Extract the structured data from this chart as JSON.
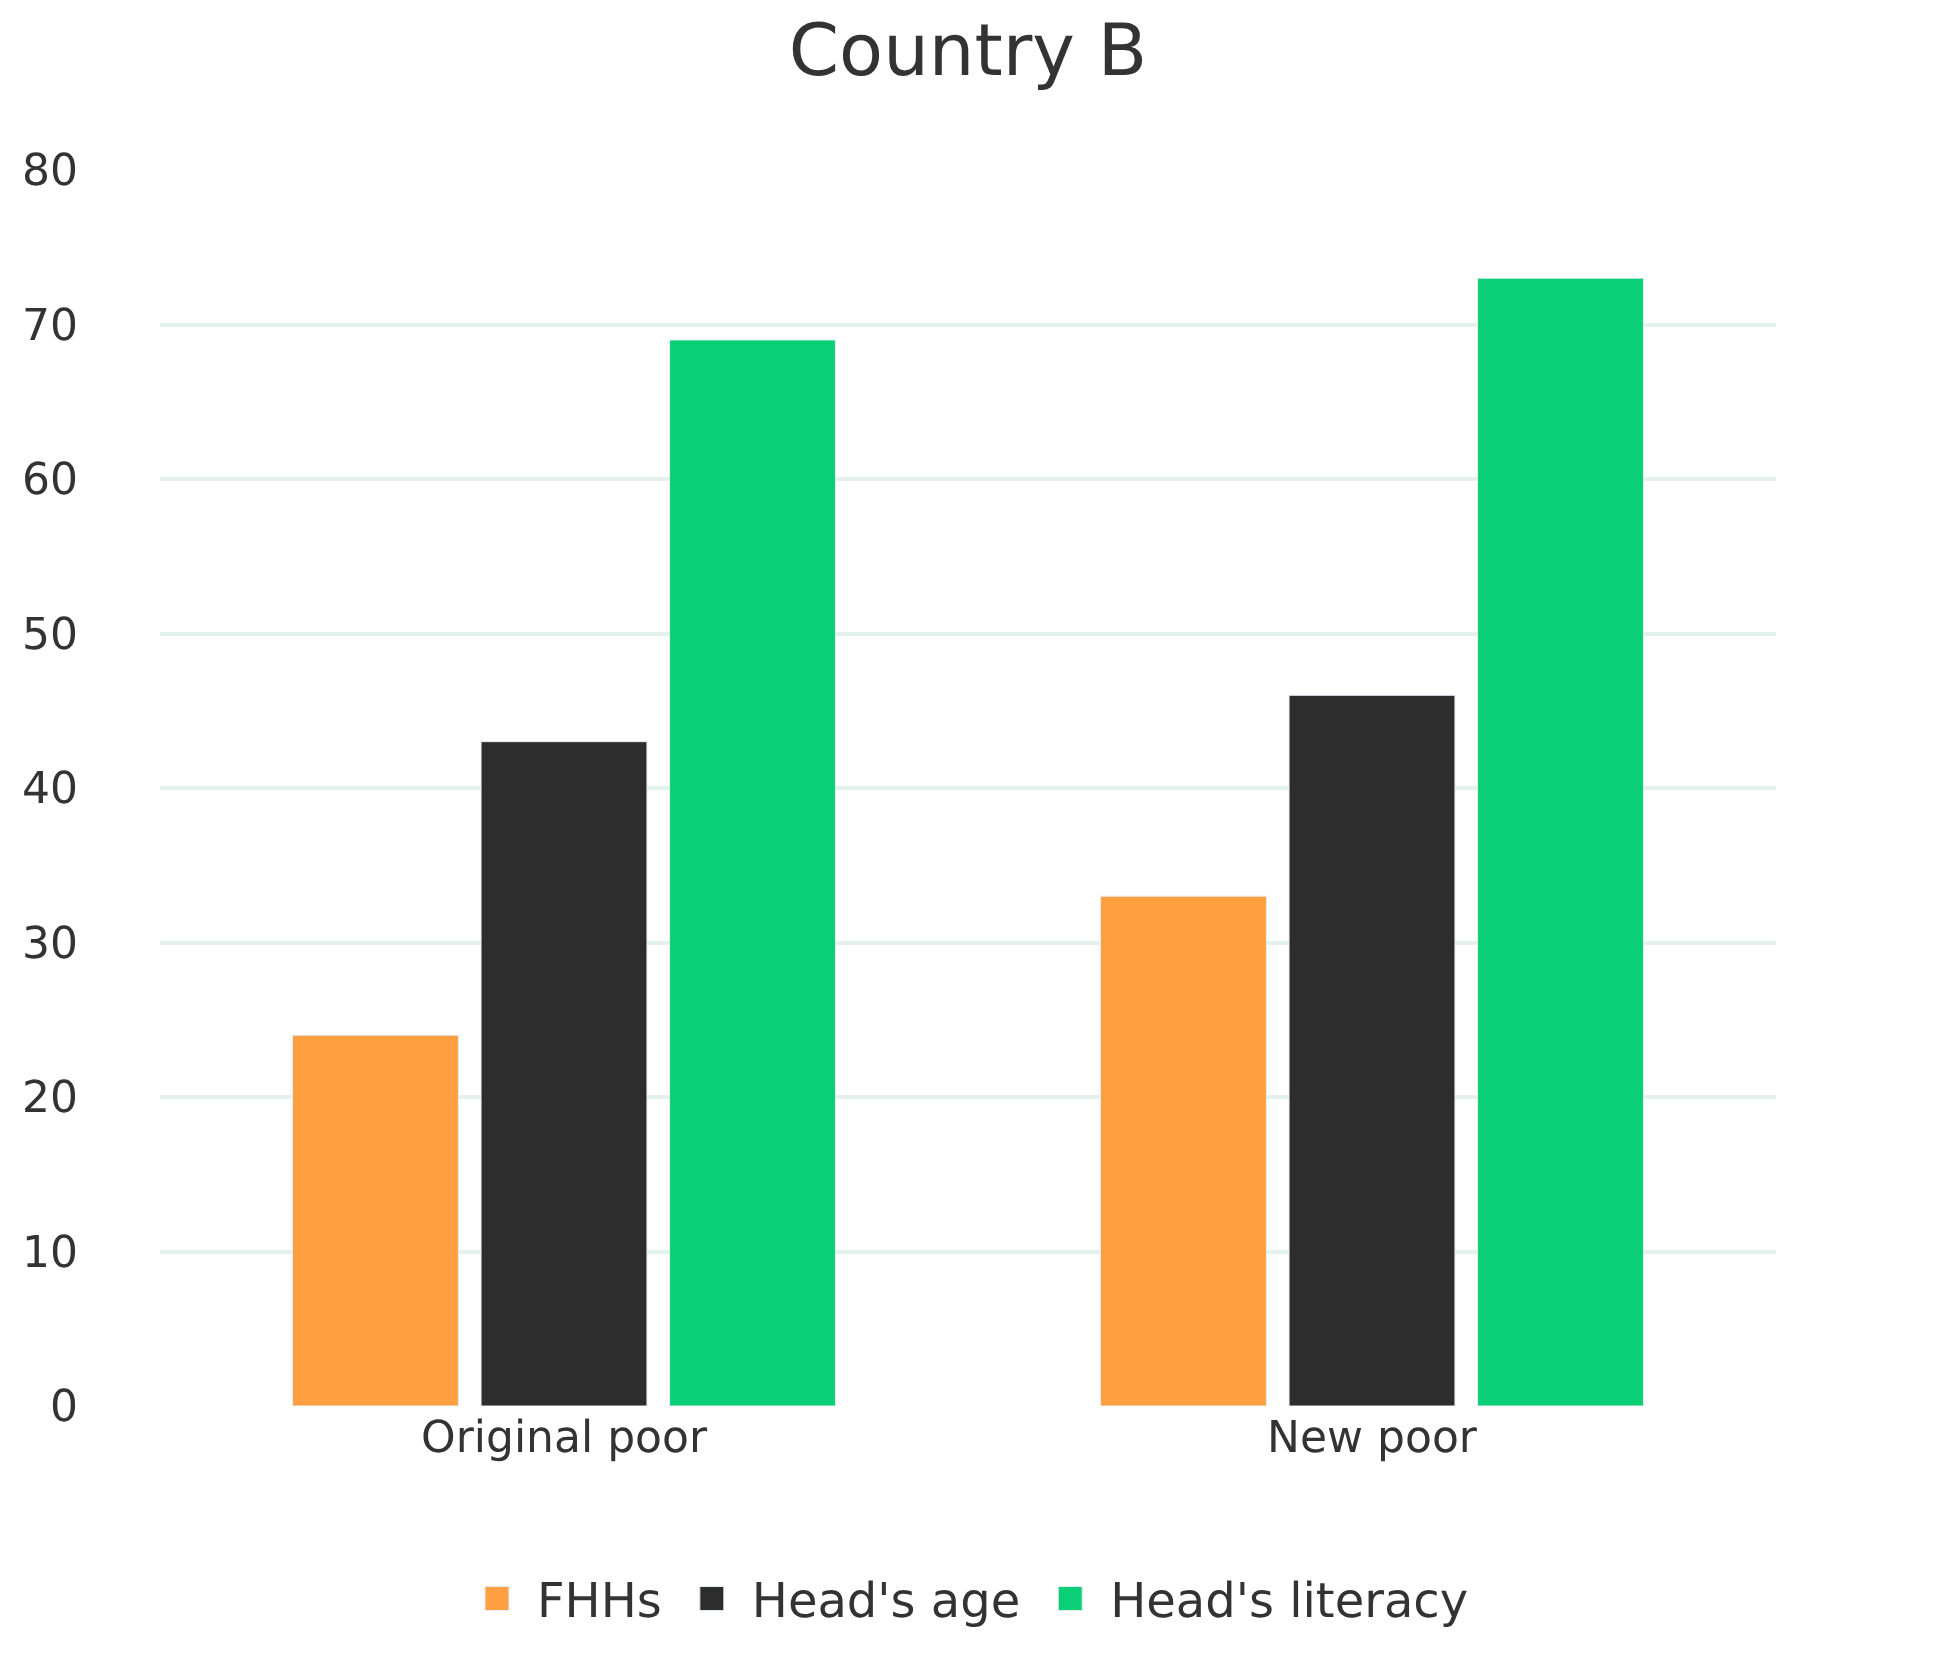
{
  "chart_data": {
    "type": "bar",
    "title": "Country B",
    "categories": [
      "Original poor",
      "New poor"
    ],
    "series": [
      {
        "name": "FHHs",
        "color": "#ff9f40",
        "values": [
          24,
          33
        ]
      },
      {
        "name": "Head's age",
        "color": "#2d2d2d",
        "values": [
          43,
          46
        ]
      },
      {
        "name": "Head's literacy",
        "color": "#0acf76",
        "values": [
          69,
          73
        ]
      }
    ],
    "ylim": [
      0,
      80
    ],
    "yticks": [
      0,
      10,
      20,
      30,
      40,
      50,
      60,
      70,
      80
    ],
    "grid": "y",
    "legend": "bottom"
  }
}
